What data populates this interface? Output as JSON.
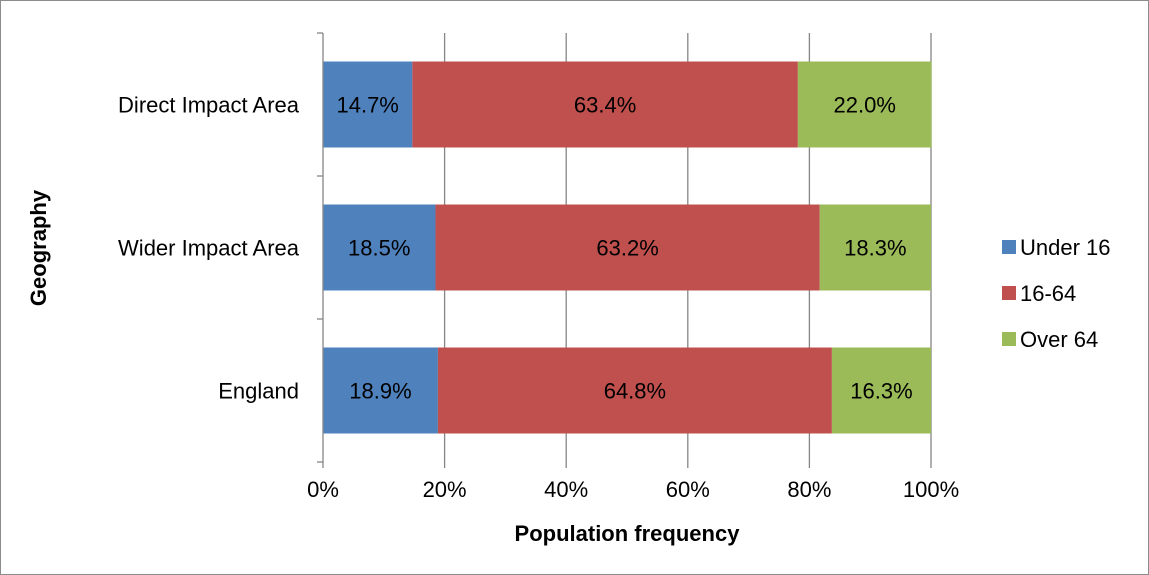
{
  "chart_data": {
    "type": "bar",
    "orientation": "horizontal",
    "stacked": "percent",
    "title": "",
    "xlabel": "Population frequency",
    "ylabel": "Geography",
    "xlim": [
      0,
      100
    ],
    "x_ticks": [
      "0%",
      "20%",
      "40%",
      "60%",
      "80%",
      "100%"
    ],
    "categories": [
      "Direct Impact Area",
      "Wider Impact Area",
      "England"
    ],
    "series": [
      {
        "name": "Under 16",
        "color": "#4f81bd",
        "values": [
          14.7,
          18.5,
          18.9
        ],
        "labels": [
          "14.7%",
          "18.5%",
          "18.9%"
        ]
      },
      {
        "name": "16-64",
        "color": "#c0504d",
        "values": [
          63.4,
          63.2,
          64.8
        ],
        "labels": [
          "63.4%",
          "63.2%",
          "64.8%"
        ]
      },
      {
        "name": "Over 64",
        "color": "#9bbb59",
        "values": [
          22.0,
          18.3,
          16.3
        ],
        "labels": [
          "22.0%",
          "18.3%",
          "16.3%"
        ]
      }
    ],
    "grid": true,
    "legend": "right"
  }
}
